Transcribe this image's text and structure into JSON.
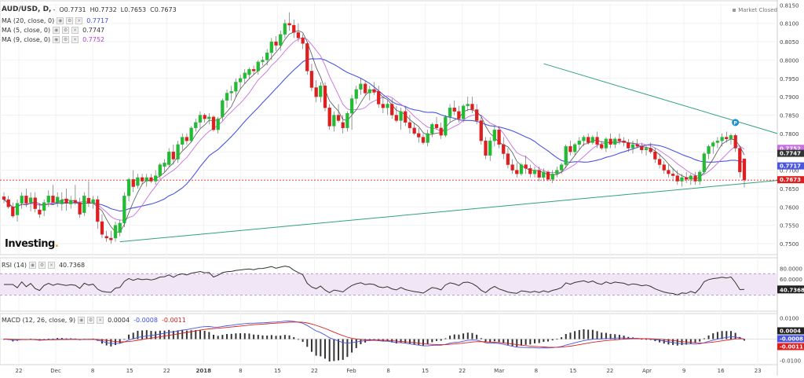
{
  "header": {
    "symbol": "AUD/USD, D,",
    "open": "O0.7731",
    "high": "H0.7732",
    "low": "L0.7653",
    "close": "C0.7673",
    "market_status": "Market Closed"
  },
  "indicators": [
    {
      "label": "MA (20, close, 0)",
      "value": "0.7717",
      "color": "#3b4ee0"
    },
    {
      "label": "MA (5, close, 0)",
      "value": "0.7747",
      "color": "#333333"
    },
    {
      "label": "MA (9, close, 0)",
      "value": "0.7752",
      "color": "#b13ad6"
    }
  ],
  "rsi_label": "RSI (14)",
  "rsi_value": "40.7368",
  "macd": {
    "label": "MACD (12, 26, close, 9)",
    "v1": "0.0004",
    "v2": "-0.0008",
    "v3": "-0.0011"
  },
  "logo": "Investing",
  "colors": {
    "up": "#22bb33",
    "down": "#dd1f1f",
    "ma20": "#4a56e0",
    "ma5": "#555555",
    "ma9": "#c76fe0",
    "trend": "#2fa37a",
    "rsi_band": "#f1e6f5"
  },
  "chart_data": [
    {
      "type": "candlestick",
      "ylim": [
        0.747,
        0.8155
      ],
      "y_ticks": [
        "0.8150",
        "0.8100",
        "0.8050",
        "0.8000",
        "0.7950",
        "0.7900",
        "0.7850",
        "0.7800",
        "0.7750",
        "0.7700",
        "0.7650",
        "0.7600",
        "0.7550",
        "0.7500"
      ],
      "x_tick_labels": [
        "22",
        "Dec",
        "8",
        "15",
        "22",
        "2018",
        "8",
        "15",
        "22",
        "Feb",
        "8",
        "15",
        "22",
        "Mar",
        "8",
        "15",
        "22",
        "Apr",
        "9",
        "16",
        "23"
      ],
      "price_labels": [
        {
          "text": "0.7752",
          "value": 0.7752,
          "color": "#c76fe0"
        },
        {
          "text": "0.7747",
          "value": 0.7747,
          "color": "#333333"
        },
        {
          "text": "0.7717",
          "value": 0.7717,
          "color": "#4a56e0"
        },
        {
          "text": "0.7673",
          "value": 0.7673,
          "color": "#dd1f1f"
        }
      ],
      "current_price": 0.7673,
      "trendline_upper": [
        [
          121,
          0.799
        ],
        [
          169,
          0.78
        ]
      ],
      "trendline_lower": [
        [
          26,
          0.7505
        ],
        [
          169,
          0.7672
        ]
      ],
      "marker_P": {
        "index": 164,
        "value": 0.783,
        "text": "P"
      },
      "candles": [
        [
          0.7628,
          0.764,
          0.761,
          0.762
        ],
        [
          0.762,
          0.763,
          0.7595,
          0.76
        ],
        [
          0.76,
          0.7612,
          0.757,
          0.7575
        ],
        [
          0.7578,
          0.762,
          0.756,
          0.761
        ],
        [
          0.761,
          0.764,
          0.7595,
          0.763
        ],
        [
          0.763,
          0.765,
          0.76,
          0.761
        ],
        [
          0.7612,
          0.764,
          0.7588,
          0.7625
        ],
        [
          0.7625,
          0.764,
          0.7585,
          0.7595
        ],
        [
          0.7592,
          0.761,
          0.757,
          0.758
        ],
        [
          0.759,
          0.762,
          0.7575,
          0.7612
        ],
        [
          0.7612,
          0.7645,
          0.76,
          0.763
        ],
        [
          0.763,
          0.766,
          0.7615,
          0.7612
        ],
        [
          0.7612,
          0.764,
          0.76,
          0.7627
        ],
        [
          0.7608,
          0.764,
          0.759,
          0.7618
        ],
        [
          0.7622,
          0.765,
          0.759,
          0.761
        ],
        [
          0.7608,
          0.763,
          0.7595,
          0.7618
        ],
        [
          0.7618,
          0.766,
          0.7605,
          0.7612
        ],
        [
          0.7612,
          0.7625,
          0.757,
          0.758
        ],
        [
          0.7584,
          0.764,
          0.7575,
          0.763
        ],
        [
          0.7624,
          0.767,
          0.76,
          0.761
        ],
        [
          0.761,
          0.763,
          0.7595,
          0.762
        ],
        [
          0.762,
          0.763,
          0.754,
          0.756
        ],
        [
          0.756,
          0.758,
          0.7515,
          0.7525
        ],
        [
          0.752,
          0.7535,
          0.7505,
          0.7515
        ],
        [
          0.7515,
          0.7535,
          0.75,
          0.751
        ],
        [
          0.7515,
          0.756,
          0.7505,
          0.755
        ],
        [
          0.753,
          0.7565,
          0.752,
          0.7556
        ],
        [
          0.7556,
          0.764,
          0.7545,
          0.763
        ],
        [
          0.763,
          0.768,
          0.7615,
          0.7675
        ],
        [
          0.7675,
          0.77,
          0.764,
          0.7655
        ],
        [
          0.7658,
          0.769,
          0.765,
          0.768
        ],
        [
          0.768,
          0.769,
          0.766,
          0.767
        ],
        [
          0.767,
          0.769,
          0.7655,
          0.768
        ],
        [
          0.768,
          0.769,
          0.7665,
          0.767
        ],
        [
          0.767,
          0.77,
          0.766,
          0.7685
        ],
        [
          0.7685,
          0.772,
          0.7675,
          0.7715
        ],
        [
          0.771,
          0.773,
          0.7695,
          0.772
        ],
        [
          0.7715,
          0.776,
          0.771,
          0.775
        ],
        [
          0.775,
          0.777,
          0.7715,
          0.773
        ],
        [
          0.773,
          0.778,
          0.772,
          0.777
        ],
        [
          0.777,
          0.78,
          0.7755,
          0.779
        ],
        [
          0.779,
          0.78,
          0.777,
          0.778
        ],
        [
          0.778,
          0.782,
          0.7775,
          0.7815
        ],
        [
          0.7815,
          0.784,
          0.7805,
          0.783
        ],
        [
          0.783,
          0.786,
          0.7815,
          0.785
        ],
        [
          0.785,
          0.7855,
          0.783,
          0.784
        ],
        [
          0.784,
          0.7855,
          0.7825,
          0.7845
        ],
        [
          0.7845,
          0.785,
          0.7805,
          0.781
        ],
        [
          0.781,
          0.7845,
          0.78,
          0.784
        ],
        [
          0.7845,
          0.7895,
          0.7835,
          0.789
        ],
        [
          0.789,
          0.792,
          0.787,
          0.791
        ],
        [
          0.791,
          0.793,
          0.789,
          0.7915
        ],
        [
          0.7915,
          0.795,
          0.79,
          0.794
        ],
        [
          0.794,
          0.796,
          0.792,
          0.795
        ],
        [
          0.795,
          0.7975,
          0.7935,
          0.7965
        ],
        [
          0.796,
          0.798,
          0.795,
          0.7975
        ],
        [
          0.7975,
          0.7985,
          0.796,
          0.797
        ],
        [
          0.797,
          0.8,
          0.796,
          0.7995
        ],
        [
          0.7995,
          0.801,
          0.7985,
          0.8
        ],
        [
          0.8,
          0.803,
          0.7985,
          0.802
        ],
        [
          0.802,
          0.806,
          0.8,
          0.805
        ],
        [
          0.805,
          0.8065,
          0.8025,
          0.804
        ],
        [
          0.804,
          0.808,
          0.8025,
          0.807
        ],
        [
          0.807,
          0.811,
          0.806,
          0.81
        ],
        [
          0.81,
          0.813,
          0.808,
          0.8095
        ],
        [
          0.8095,
          0.811,
          0.806,
          0.8075
        ],
        [
          0.8075,
          0.81,
          0.805,
          0.806
        ],
        [
          0.806,
          0.807,
          0.803,
          0.8045
        ],
        [
          0.8045,
          0.805,
          0.796,
          0.797
        ],
        [
          0.797,
          0.799,
          0.7915,
          0.7925
        ],
        [
          0.7925,
          0.7945,
          0.7885,
          0.79
        ],
        [
          0.79,
          0.794,
          0.7885,
          0.793
        ],
        [
          0.793,
          0.794,
          0.786,
          0.787
        ],
        [
          0.787,
          0.788,
          0.781,
          0.782
        ],
        [
          0.782,
          0.786,
          0.7805,
          0.785
        ],
        [
          0.785,
          0.788,
          0.783,
          0.7835
        ],
        [
          0.783,
          0.785,
          0.78,
          0.7815
        ],
        [
          0.7815,
          0.786,
          0.7805,
          0.7855
        ],
        [
          0.7855,
          0.7905,
          0.781,
          0.7895
        ],
        [
          0.7895,
          0.793,
          0.788,
          0.792
        ],
        [
          0.792,
          0.795,
          0.7905,
          0.7935
        ],
        [
          0.7935,
          0.7945,
          0.7905,
          0.791
        ],
        [
          0.791,
          0.793,
          0.789,
          0.792
        ],
        [
          0.792,
          0.794,
          0.7905,
          0.7912
        ],
        [
          0.7915,
          0.793,
          0.787,
          0.788
        ],
        [
          0.788,
          0.79,
          0.7855,
          0.787
        ],
        [
          0.787,
          0.789,
          0.785,
          0.788
        ],
        [
          0.788,
          0.7895,
          0.784,
          0.785
        ],
        [
          0.785,
          0.7875,
          0.783,
          0.7835
        ],
        [
          0.7835,
          0.787,
          0.781,
          0.786
        ],
        [
          0.786,
          0.7875,
          0.782,
          0.783
        ],
        [
          0.783,
          0.785,
          0.78,
          0.7815
        ],
        [
          0.7815,
          0.783,
          0.7795,
          0.78
        ],
        [
          0.78,
          0.7815,
          0.7775,
          0.779
        ],
        [
          0.779,
          0.78,
          0.777,
          0.7775
        ],
        [
          0.7775,
          0.781,
          0.7765,
          0.78
        ],
        [
          0.78,
          0.783,
          0.779,
          0.7825
        ],
        [
          0.7825,
          0.7845,
          0.781,
          0.7815
        ],
        [
          0.7815,
          0.783,
          0.7785,
          0.7795
        ],
        [
          0.7795,
          0.785,
          0.779,
          0.7845
        ],
        [
          0.7845,
          0.788,
          0.783,
          0.787
        ],
        [
          0.787,
          0.789,
          0.785,
          0.786
        ],
        [
          0.786,
          0.7875,
          0.783,
          0.784
        ],
        [
          0.784,
          0.788,
          0.783,
          0.7875
        ],
        [
          0.7875,
          0.79,
          0.786,
          0.788
        ],
        [
          0.788,
          0.79,
          0.7855,
          0.7865
        ],
        [
          0.7865,
          0.788,
          0.7825,
          0.7835
        ],
        [
          0.7835,
          0.785,
          0.777,
          0.778
        ],
        [
          0.778,
          0.779,
          0.773,
          0.774
        ],
        [
          0.774,
          0.779,
          0.7725,
          0.778
        ],
        [
          0.778,
          0.782,
          0.7765,
          0.781
        ],
        [
          0.781,
          0.782,
          0.776,
          0.777
        ],
        [
          0.777,
          0.779,
          0.773,
          0.7745
        ],
        [
          0.7745,
          0.776,
          0.7705,
          0.7715
        ],
        [
          0.7715,
          0.773,
          0.769,
          0.77
        ],
        [
          0.77,
          0.772,
          0.768,
          0.769
        ],
        [
          0.769,
          0.772,
          0.7685,
          0.7715
        ],
        [
          0.7715,
          0.774,
          0.769,
          0.7705
        ],
        [
          0.7705,
          0.7715,
          0.768,
          0.769
        ],
        [
          0.769,
          0.771,
          0.768,
          0.77
        ],
        [
          0.77,
          0.771,
          0.767,
          0.768
        ],
        [
          0.768,
          0.7705,
          0.767,
          0.7695
        ],
        [
          0.7695,
          0.77,
          0.767,
          0.7675
        ],
        [
          0.7675,
          0.77,
          0.7665,
          0.769
        ],
        [
          0.769,
          0.771,
          0.768,
          0.77
        ],
        [
          0.77,
          0.772,
          0.769,
          0.7715
        ],
        [
          0.7715,
          0.777,
          0.7705,
          0.7765
        ],
        [
          0.7765,
          0.778,
          0.774,
          0.775
        ],
        [
          0.775,
          0.7775,
          0.774,
          0.777
        ],
        [
          0.777,
          0.779,
          0.7755,
          0.778
        ],
        [
          0.778,
          0.7795,
          0.7765,
          0.779
        ],
        [
          0.779,
          0.78,
          0.777,
          0.7775
        ],
        [
          0.7775,
          0.7795,
          0.777,
          0.779
        ],
        [
          0.779,
          0.7805,
          0.776,
          0.777
        ],
        [
          0.777,
          0.778,
          0.7755,
          0.776
        ],
        [
          0.776,
          0.779,
          0.775,
          0.7785
        ],
        [
          0.7785,
          0.78,
          0.776,
          0.777
        ],
        [
          0.777,
          0.779,
          0.776,
          0.7785
        ],
        [
          0.7785,
          0.78,
          0.777,
          0.778
        ],
        [
          0.778,
          0.779,
          0.7765,
          0.7775
        ],
        [
          0.7775,
          0.7785,
          0.775,
          0.776
        ],
        [
          0.776,
          0.778,
          0.7745,
          0.777
        ],
        [
          0.777,
          0.7785,
          0.776,
          0.7765
        ],
        [
          0.7765,
          0.7775,
          0.7745,
          0.7755
        ],
        [
          0.7755,
          0.777,
          0.774,
          0.776
        ],
        [
          0.776,
          0.7775,
          0.7745,
          0.775
        ],
        [
          0.775,
          0.776,
          0.772,
          0.773
        ],
        [
          0.773,
          0.7745,
          0.7705,
          0.7715
        ],
        [
          0.7715,
          0.7725,
          0.769,
          0.77
        ],
        [
          0.77,
          0.7715,
          0.768,
          0.769
        ],
        [
          0.769,
          0.7705,
          0.767,
          0.7685
        ],
        [
          0.7685,
          0.77,
          0.766,
          0.767
        ],
        [
          0.767,
          0.769,
          0.7655,
          0.768
        ],
        [
          0.768,
          0.7695,
          0.7665,
          0.7675
        ],
        [
          0.7675,
          0.769,
          0.766,
          0.7685
        ],
        [
          0.7685,
          0.7695,
          0.766,
          0.767
        ],
        [
          0.767,
          0.77,
          0.766,
          0.7695
        ],
        [
          0.7695,
          0.775,
          0.769,
          0.7745
        ],
        [
          0.7745,
          0.777,
          0.773,
          0.7765
        ],
        [
          0.7765,
          0.778,
          0.7745,
          0.7775
        ],
        [
          0.7775,
          0.779,
          0.776,
          0.778
        ],
        [
          0.778,
          0.78,
          0.7765,
          0.779
        ],
        [
          0.779,
          0.7805,
          0.7775,
          0.7785
        ],
        [
          0.7785,
          0.78,
          0.777,
          0.7795
        ],
        [
          0.7795,
          0.78,
          0.775,
          0.776
        ],
        [
          0.776,
          0.7765,
          0.768,
          0.7695
        ],
        [
          0.7731,
          0.7732,
          0.7653,
          0.7673
        ]
      ]
    },
    {
      "type": "line",
      "name": "RSI (14)",
      "ylim": [
        0,
        100
      ],
      "y_ticks": [
        "80.0000",
        "60.0000"
      ],
      "band": [
        30,
        70
      ],
      "current": 40.7368
    },
    {
      "type": "bar",
      "name": "MACD (12, 26, close, 9)",
      "y_ticks": [
        "0.0100",
        "-0.0100"
      ],
      "macd_ylim": [
        -0.012,
        0.012
      ]
    }
  ]
}
